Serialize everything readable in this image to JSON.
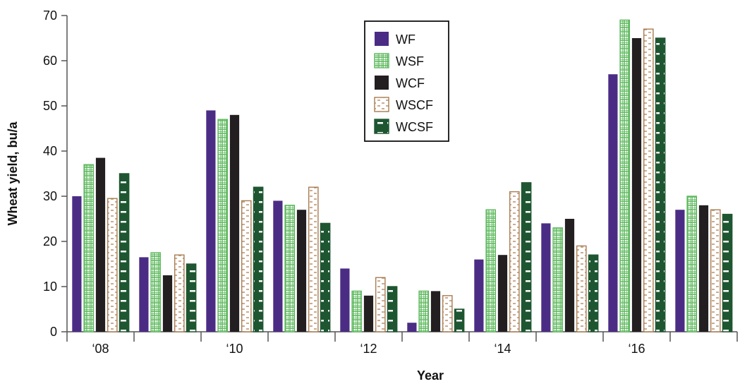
{
  "chart_data": {
    "type": "bar",
    "title": "",
    "xlabel": "Year",
    "ylabel": "Wheat yield, bu/a",
    "ylim": [
      0,
      70
    ],
    "yticks": [
      0,
      10,
      20,
      30,
      40,
      50,
      60,
      70
    ],
    "categories": [
      "'08",
      "",
      "'10",
      "",
      "'12",
      "",
      "'14",
      "",
      "'16",
      ""
    ],
    "tick_labels": [
      "‘08",
      "‘10",
      "‘12",
      "‘14",
      "‘16"
    ],
    "grid": false,
    "legend_position": "top-center",
    "series": [
      {
        "name": "WF",
        "color": "#4b2c85",
        "pattern": "solid",
        "values": [
          30,
          16.5,
          49,
          29,
          14,
          2,
          16,
          24,
          57,
          27
        ]
      },
      {
        "name": "WSF",
        "color": "#5cb85c",
        "pattern": "grid",
        "values": [
          37,
          17.5,
          47,
          28,
          9,
          9,
          27,
          23,
          69,
          30
        ]
      },
      {
        "name": "WCF",
        "color": "#231f20",
        "pattern": "solid",
        "values": [
          38.5,
          12.5,
          48,
          27,
          8,
          9,
          17,
          25,
          65,
          28
        ]
      },
      {
        "name": "WSCF",
        "color": "#a97c50",
        "pattern": "dashes",
        "values": [
          29.5,
          17,
          29,
          32,
          12,
          8,
          31,
          19,
          67,
          27
        ]
      },
      {
        "name": "WCSF",
        "color": "#1e5631",
        "pattern": "white-dash",
        "values": [
          35,
          15,
          32,
          24,
          10,
          5,
          33,
          17,
          65,
          26
        ]
      }
    ]
  }
}
